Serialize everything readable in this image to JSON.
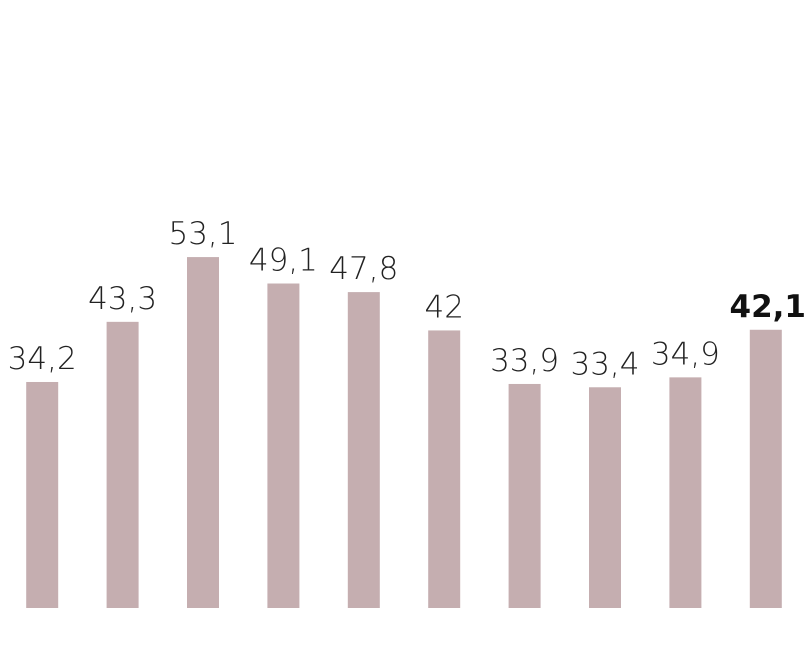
{
  "chart_data": {
    "type": "bar",
    "categories": [
      null,
      null,
      null,
      null,
      null,
      null,
      null,
      null,
      null,
      null
    ],
    "values": [
      34.2,
      43.3,
      53.1,
      49.1,
      47.8,
      42,
      33.9,
      33.4,
      34.9,
      42.1
    ],
    "value_labels": [
      "34,2",
      "43,3",
      "53,1",
      "49,1",
      "47,8",
      "42",
      "33,9",
      "33,4",
      "34,9",
      "42,1"
    ],
    "color": "#c5aeb0",
    "ylim": [
      0,
      92
    ]
  }
}
